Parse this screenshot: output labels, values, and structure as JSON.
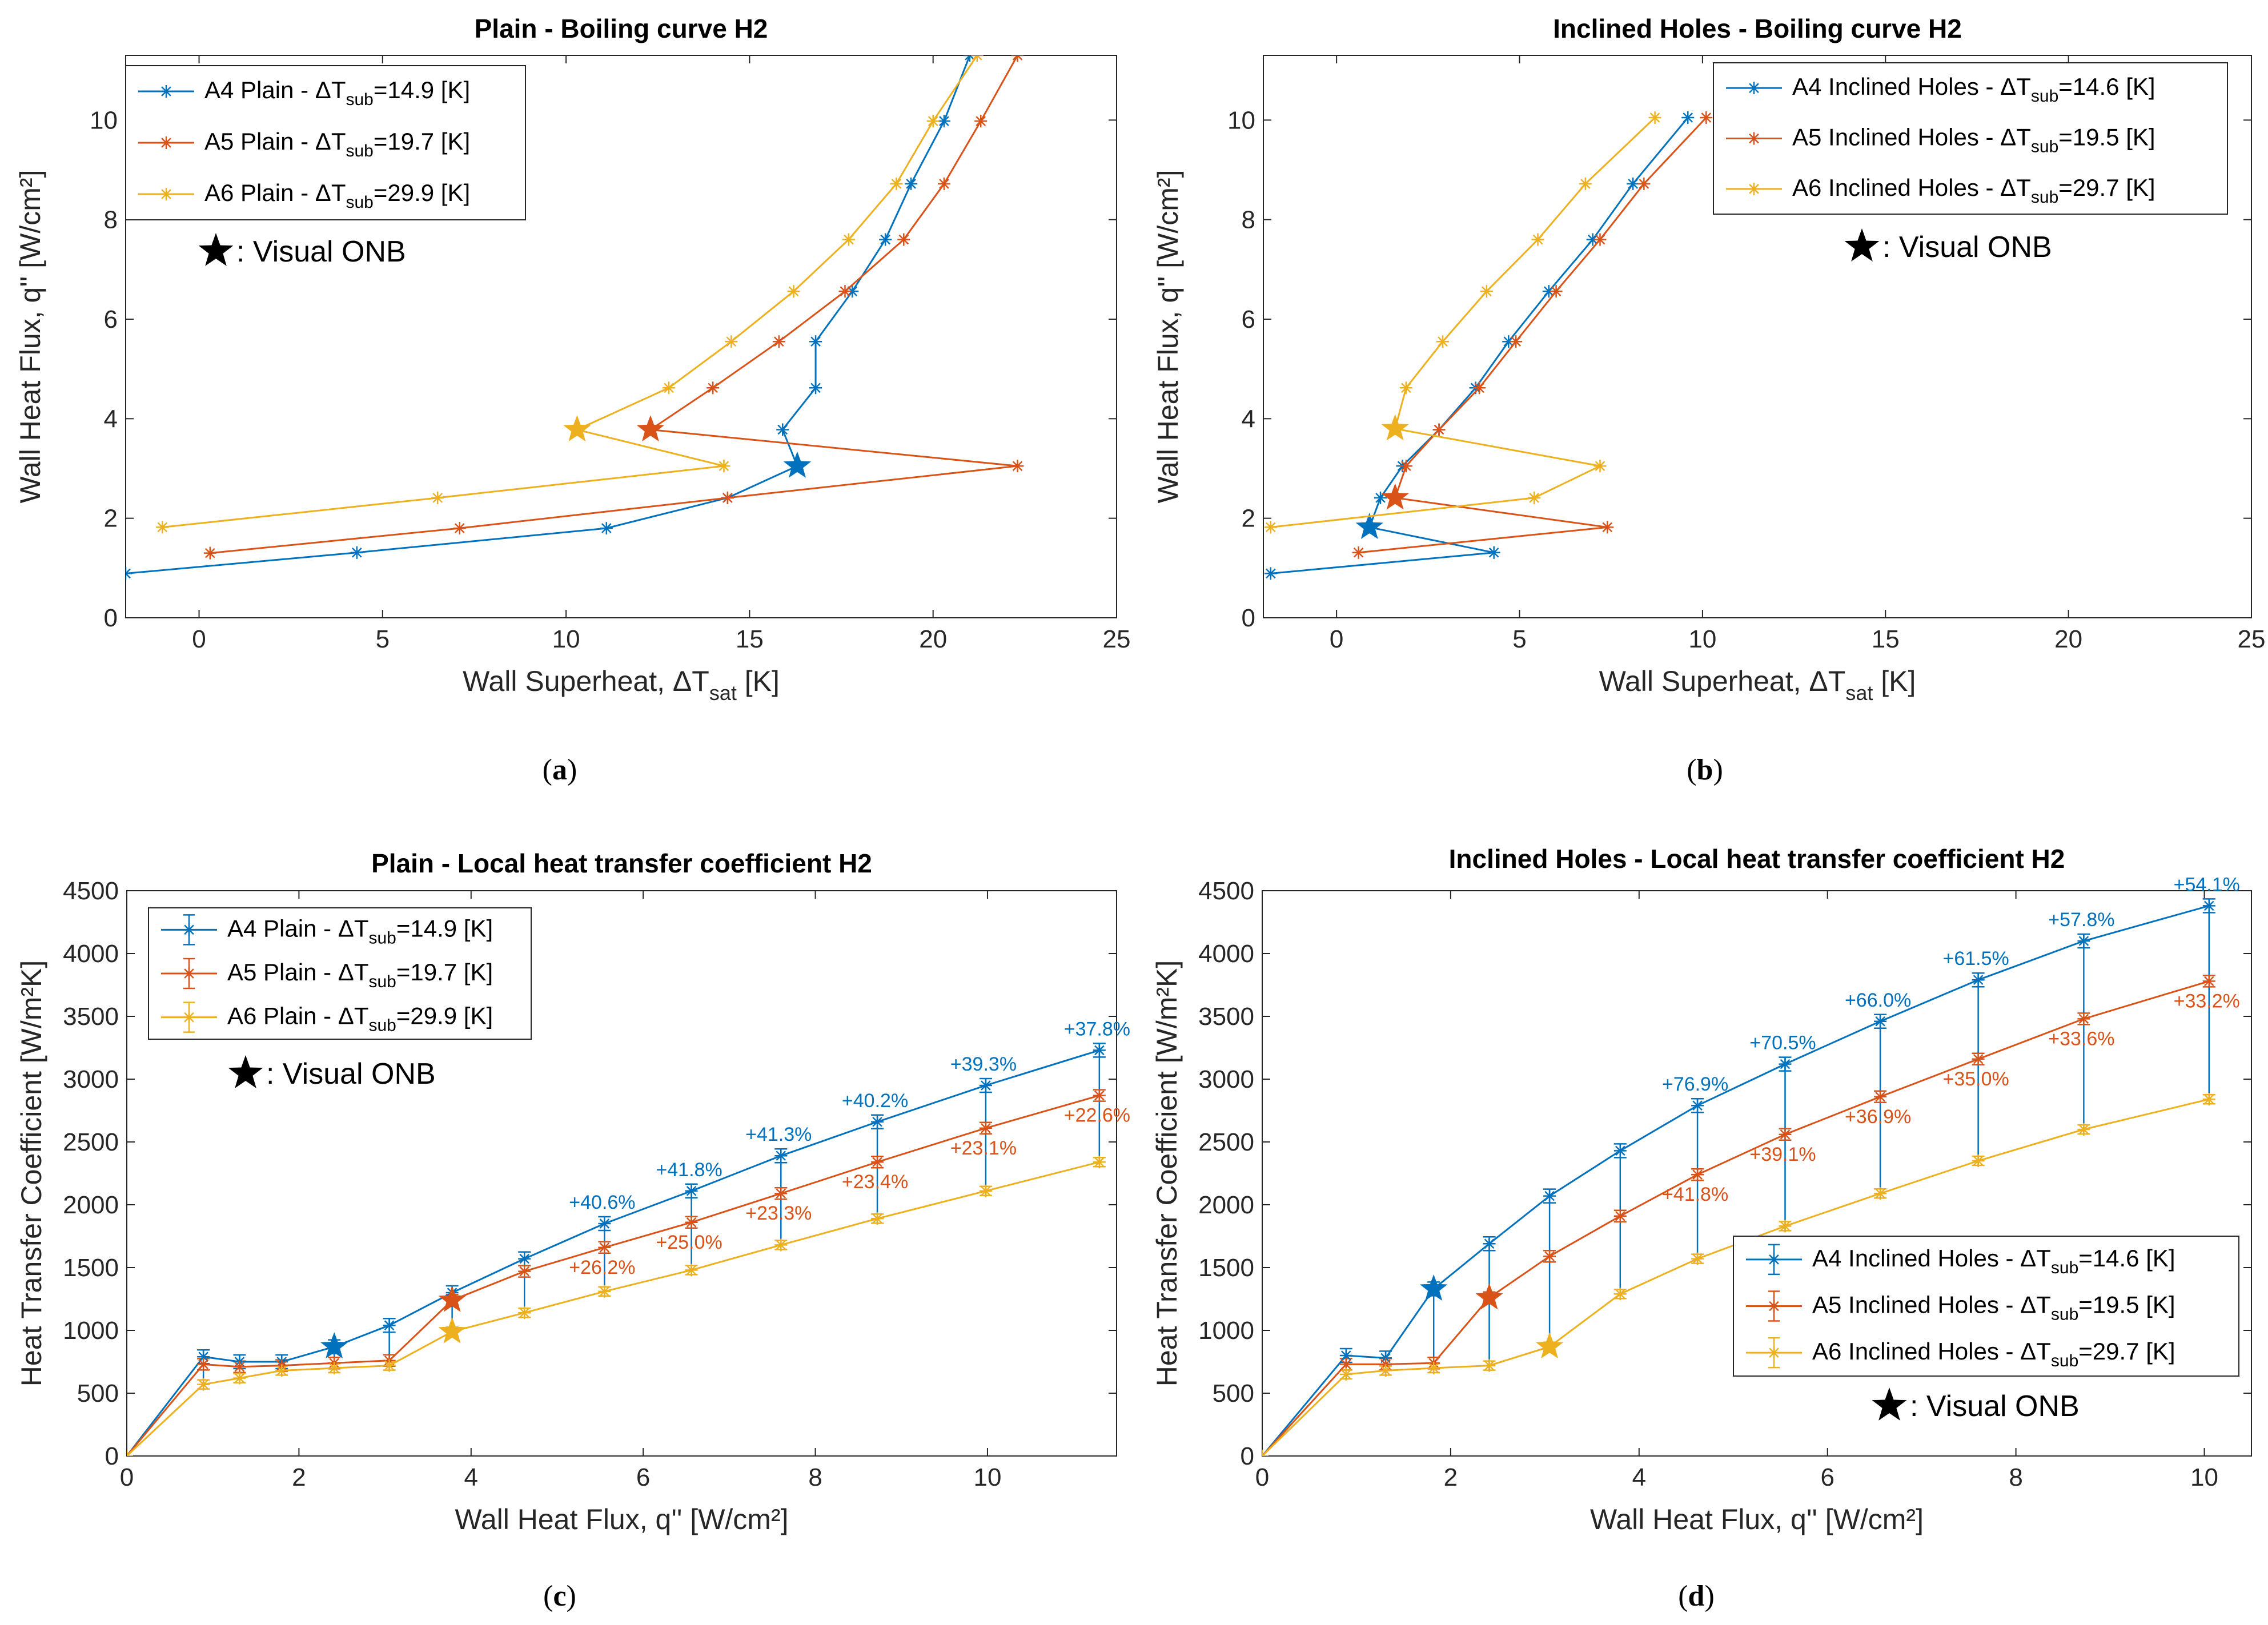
{
  "colors": {
    "A4": "#0072BD",
    "A5": "#D95319",
    "A6": "#EDB120"
  },
  "chart_data": [
    {
      "id": "a",
      "type": "line",
      "caption": "a",
      "title": "Plain - Boiling curve H2",
      "xlabel": "Wall Superheat, ΔT",
      "xlabel_sub": "sat",
      "xlabel_suffix": " [K]",
      "ylabel": "Wall Heat Flux, q'' [W/cm²]",
      "xlim": [
        -2,
        25
      ],
      "ylim": [
        0,
        11.3
      ],
      "xticks": [
        0,
        5,
        10,
        15,
        20,
        25
      ],
      "yticks": [
        0,
        2,
        4,
        6,
        8,
        10
      ],
      "legend_position": "top-left",
      "onb_label": ": Visual ONB",
      "series": [
        {
          "key": "A4",
          "label": "A4 Plain - ΔT",
          "sub": "sub",
          "suffix": "=14.9 [K]",
          "x": [
            -2,
            4.3,
            11.1,
            14.4,
            16.3,
            15.9,
            16.8,
            16.8,
            17.8,
            18.7,
            19.4,
            20.3,
            21.0
          ],
          "y": [
            0.89,
            1.31,
            1.8,
            2.41,
            3.05,
            3.78,
            4.62,
            5.55,
            6.56,
            7.6,
            8.72,
            9.98,
            11.3
          ],
          "onb": [
            16.3,
            3.05
          ]
        },
        {
          "key": "A5",
          "label": "A5 Plain - ΔT",
          "sub": "sub",
          "suffix": "=19.7 [K]",
          "x": [
            0.3,
            7.1,
            14.4,
            22.3,
            12.3,
            14.0,
            15.8,
            17.6,
            19.2,
            20.3,
            21.3,
            22.3
          ],
          "y": [
            1.3,
            1.8,
            2.41,
            3.05,
            3.78,
            4.62,
            5.55,
            6.56,
            7.6,
            8.72,
            9.98,
            11.3
          ],
          "onb": [
            12.3,
            3.78
          ]
        },
        {
          "key": "A6",
          "label": "A6 Plain - ΔT",
          "sub": "sub",
          "suffix": "=29.9 [K]",
          "x": [
            -1.0,
            6.5,
            14.3,
            10.3,
            12.8,
            14.5,
            16.2,
            17.7,
            19.0,
            20.0,
            21.2
          ],
          "y": [
            1.82,
            2.41,
            3.05,
            3.78,
            4.62,
            5.55,
            6.56,
            7.6,
            8.72,
            9.98,
            11.3
          ],
          "onb": [
            10.3,
            3.78
          ]
        }
      ]
    },
    {
      "id": "b",
      "type": "line",
      "caption": "b",
      "title": "Inclined Holes - Boiling curve H2",
      "xlabel": "Wall Superheat, ΔT",
      "xlabel_sub": "sat",
      "xlabel_suffix": " [K]",
      "ylabel": "Wall Heat Flux, q'' [W/cm²]",
      "xlim": [
        -2,
        25
      ],
      "ylim": [
        0,
        11.3
      ],
      "xticks": [
        0,
        5,
        10,
        15,
        20,
        25
      ],
      "yticks": [
        0,
        2,
        4,
        6,
        8,
        10
      ],
      "legend_position": "top-right",
      "onb_label": ": Visual ONB",
      "series": [
        {
          "key": "A4",
          "label": "A4 Inclined Holes - ΔT",
          "sub": "sub",
          "suffix": "=14.6 [K]",
          "x": [
            -1.8,
            4.3,
            0.9,
            1.2,
            1.8,
            2.8,
            3.8,
            4.7,
            5.8,
            7.0,
            8.1,
            9.6
          ],
          "y": [
            0.89,
            1.31,
            1.82,
            2.41,
            3.05,
            3.78,
            4.62,
            5.55,
            6.56,
            7.6,
            8.72,
            10.05
          ],
          "onb": [
            0.9,
            1.82
          ]
        },
        {
          "key": "A5",
          "label": "A5 Inclined Holes - ΔT",
          "sub": "sub",
          "suffix": "=19.5 [K]",
          "x": [
            0.6,
            7.4,
            1.6,
            1.9,
            2.8,
            3.9,
            4.9,
            6.0,
            7.2,
            8.4,
            10.1
          ],
          "y": [
            1.31,
            1.82,
            2.41,
            3.05,
            3.78,
            4.62,
            5.55,
            6.56,
            7.6,
            8.72,
            10.05
          ],
          "onb": [
            1.6,
            2.41
          ]
        },
        {
          "key": "A6",
          "label": "A6 Inclined Holes - ΔT",
          "sub": "sub",
          "suffix": "=29.7 [K]",
          "x": [
            -1.8,
            5.4,
            7.2,
            1.6,
            1.9,
            2.9,
            4.1,
            5.5,
            6.8,
            8.7
          ],
          "y": [
            1.82,
            2.41,
            3.05,
            3.8,
            4.62,
            5.55,
            6.56,
            7.6,
            8.72,
            10.05
          ],
          "onb": [
            1.6,
            3.8
          ]
        }
      ]
    },
    {
      "id": "c",
      "type": "line",
      "caption": "c",
      "title": "Plain - Local heat transfer coefficient H2",
      "xlabel": "Wall Heat Flux, q'' [W/cm²]",
      "ylabel": "Heat Transfer Coefficient [W/m²K]",
      "xlim": [
        0,
        11.5
      ],
      "ylim": [
        0,
        4500
      ],
      "xticks": [
        0,
        2,
        4,
        6,
        8,
        10
      ],
      "yticks": [
        0,
        500,
        1000,
        1500,
        2000,
        2500,
        3000,
        3500,
        4000,
        4500
      ],
      "legend_position": "top-left",
      "error_bars": true,
      "onb_label": ": Visual ONB",
      "series": [
        {
          "key": "A4",
          "label": "A4 Plain - ΔT",
          "sub": "sub",
          "suffix": "=14.9 [K]",
          "x": [
            0,
            0.89,
            1.31,
            1.8,
            2.41,
            3.05,
            3.78,
            4.62,
            5.55,
            6.56,
            7.6,
            8.72,
            9.98,
            11.3
          ],
          "y": [
            0,
            790,
            750,
            750,
            870,
            1040,
            1300,
            1570,
            1850,
            2110,
            2390,
            2660,
            2950,
            3230
          ],
          "onb": [
            2.41,
            870
          ]
        },
        {
          "key": "A5",
          "label": "A5 Plain - ΔT",
          "sub": "sub",
          "suffix": "=19.7 [K]",
          "x": [
            0,
            0.89,
            1.31,
            1.8,
            2.41,
            3.05,
            3.78,
            4.62,
            5.55,
            6.56,
            7.6,
            8.72,
            9.98,
            11.3
          ],
          "y": [
            0,
            730,
            710,
            720,
            740,
            760,
            1240,
            1470,
            1660,
            1860,
            2090,
            2340,
            2610,
            2870
          ],
          "onb": [
            3.78,
            1240
          ]
        },
        {
          "key": "A6",
          "label": "A6 Plain - ΔT",
          "sub": "sub",
          "suffix": "=29.9 [K]",
          "x": [
            0,
            0.89,
            1.31,
            1.8,
            2.41,
            3.05,
            3.78,
            4.62,
            5.55,
            6.56,
            7.6,
            8.72,
            9.98,
            11.3
          ],
          "y": [
            0,
            570,
            620,
            680,
            700,
            720,
            990,
            1140,
            1310,
            1480,
            1680,
            1890,
            2110,
            2340
          ],
          "onb": [
            3.78,
            990
          ]
        }
      ],
      "percent_labels": {
        "A4": [
          {
            "x": 5.55,
            "y": 1850,
            "text": "+40.6%"
          },
          {
            "x": 6.56,
            "y": 2110,
            "text": "+41.8%"
          },
          {
            "x": 7.6,
            "y": 2390,
            "text": "+41.3%"
          },
          {
            "x": 8.72,
            "y": 2660,
            "text": "+40.2%"
          },
          {
            "x": 9.98,
            "y": 2950,
            "text": "+39.3%"
          },
          {
            "x": 11.3,
            "y": 3230,
            "text": "+37.8%"
          }
        ],
        "A5": [
          {
            "x": 5.55,
            "y": 1660,
            "text": "+26.2%"
          },
          {
            "x": 6.56,
            "y": 1860,
            "text": "+25.0%"
          },
          {
            "x": 7.6,
            "y": 2090,
            "text": "+23.3%"
          },
          {
            "x": 8.72,
            "y": 2340,
            "text": "+23.4%"
          },
          {
            "x": 9.98,
            "y": 2610,
            "text": "+23.1%"
          },
          {
            "x": 11.3,
            "y": 2870,
            "text": "+22.6%"
          }
        ]
      }
    },
    {
      "id": "d",
      "type": "line",
      "caption": "d",
      "title": "Inclined Holes - Local heat transfer coefficient H2",
      "xlabel": "Wall Heat Flux, q'' [W/cm²]",
      "ylabel": "Heat Transfer Coefficient [W/m²K]",
      "xlim": [
        0,
        10.5
      ],
      "ylim": [
        0,
        4500
      ],
      "xticks": [
        0,
        2,
        4,
        6,
        8,
        10
      ],
      "yticks": [
        0,
        500,
        1000,
        1500,
        2000,
        2500,
        3000,
        3500,
        4000,
        4500
      ],
      "legend_position": "bottom-right",
      "error_bars": true,
      "onb_label": ": Visual ONB",
      "series": [
        {
          "key": "A4",
          "label": "A4 Inclined Holes - ΔT",
          "sub": "sub",
          "suffix": "=14.6 [K]",
          "x": [
            0,
            0.89,
            1.31,
            1.82,
            2.41,
            3.05,
            3.8,
            4.62,
            5.55,
            6.56,
            7.6,
            8.72,
            10.05
          ],
          "y": [
            0,
            800,
            780,
            1330,
            1690,
            2070,
            2430,
            2790,
            3120,
            3460,
            3790,
            4100,
            4380
          ],
          "onb": [
            1.82,
            1330
          ]
        },
        {
          "key": "A5",
          "label": "A5 Inclined Holes - ΔT",
          "sub": "sub",
          "suffix": "=19.5 [K]",
          "x": [
            0,
            0.89,
            1.31,
            1.82,
            2.41,
            3.05,
            3.8,
            4.62,
            5.55,
            6.56,
            7.6,
            8.72,
            10.05
          ],
          "y": [
            0,
            730,
            730,
            740,
            1260,
            1590,
            1910,
            2240,
            2560,
            2860,
            3160,
            3480,
            3780
          ],
          "onb": [
            2.41,
            1260
          ]
        },
        {
          "key": "A6",
          "label": "A6 Inclined Holes - ΔT",
          "sub": "sub",
          "suffix": "=29.7 [K]",
          "x": [
            0,
            0.89,
            1.31,
            1.82,
            2.41,
            3.05,
            3.8,
            4.62,
            5.55,
            6.56,
            7.6,
            8.72,
            10.05
          ],
          "y": [
            0,
            650,
            680,
            700,
            720,
            870,
            1290,
            1570,
            1830,
            2090,
            2350,
            2600,
            2840
          ],
          "onb": [
            3.05,
            870
          ]
        }
      ],
      "percent_labels": {
        "A4": [
          {
            "x": 4.62,
            "y": 2790,
            "text": "+76.9%"
          },
          {
            "x": 5.55,
            "y": 3120,
            "text": "+70.5%"
          },
          {
            "x": 6.56,
            "y": 3460,
            "text": "+66.0%"
          },
          {
            "x": 7.6,
            "y": 3790,
            "text": "+61.5%"
          },
          {
            "x": 8.72,
            "y": 4100,
            "text": "+57.8%"
          },
          {
            "x": 10.05,
            "y": 4380,
            "text": "+54.1%"
          }
        ],
        "A5": [
          {
            "x": 4.62,
            "y": 2240,
            "text": "+41.8%"
          },
          {
            "x": 5.55,
            "y": 2560,
            "text": "+39.1%"
          },
          {
            "x": 6.56,
            "y": 2860,
            "text": "+36.9%"
          },
          {
            "x": 7.6,
            "y": 3160,
            "text": "+35.0%"
          },
          {
            "x": 8.72,
            "y": 3480,
            "text": "+33.6%"
          },
          {
            "x": 10.05,
            "y": 3780,
            "text": "+33.2%"
          }
        ]
      }
    }
  ]
}
